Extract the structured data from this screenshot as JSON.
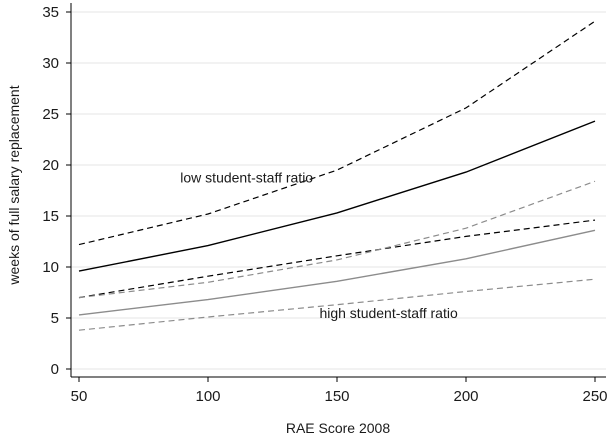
{
  "chart_data": {
    "type": "line",
    "xlabel": "RAE Score 2008",
    "ylabel": "weeks of full salary replacement",
    "xlim": [
      50,
      250
    ],
    "ylim": [
      0,
      35
    ],
    "xticks": [
      50,
      100,
      150,
      200,
      250
    ],
    "yticks": [
      0,
      5,
      10,
      15,
      20,
      25,
      30,
      35
    ],
    "grid": "horizontal",
    "series": [
      {
        "group": "low student-staff ratio",
        "role": "estimate",
        "color": "#000000",
        "dash": "solid",
        "x": [
          50,
          100,
          150,
          200,
          250
        ],
        "y": [
          9.6,
          12.1,
          15.3,
          19.3,
          24.3
        ]
      },
      {
        "group": "low student-staff ratio",
        "role": "upper bound",
        "color": "#000000",
        "dash": "dashed",
        "x": [
          50,
          100,
          150,
          200,
          250
        ],
        "y": [
          12.2,
          15.2,
          19.5,
          25.6,
          34.1
        ]
      },
      {
        "group": "low student-staff ratio",
        "role": "lower bound",
        "color": "#000000",
        "dash": "dashed",
        "x": [
          50,
          100,
          150,
          200,
          250
        ],
        "y": [
          7.0,
          9.1,
          11.1,
          13.0,
          14.6
        ]
      },
      {
        "group": "high student-staff ratio",
        "role": "estimate",
        "color": "#8c8c8c",
        "dash": "solid",
        "x": [
          50,
          100,
          150,
          200,
          250
        ],
        "y": [
          5.3,
          6.8,
          8.6,
          10.8,
          13.6
        ]
      },
      {
        "group": "high student-staff ratio",
        "role": "upper bound",
        "color": "#8c8c8c",
        "dash": "dashed",
        "x": [
          50,
          100,
          150,
          200,
          250
        ],
        "y": [
          7.0,
          8.5,
          10.7,
          13.8,
          18.4
        ]
      },
      {
        "group": "high student-staff ratio",
        "role": "lower bound",
        "color": "#8c8c8c",
        "dash": "dashed",
        "x": [
          50,
          100,
          150,
          200,
          250
        ],
        "y": [
          3.8,
          5.1,
          6.3,
          7.6,
          8.8
        ]
      }
    ],
    "annotations": [
      {
        "text": "low student-staff ratio",
        "x": 115,
        "y": 18.3
      },
      {
        "text": "high student-staff ratio",
        "x": 170,
        "y": 5.0
      }
    ]
  }
}
